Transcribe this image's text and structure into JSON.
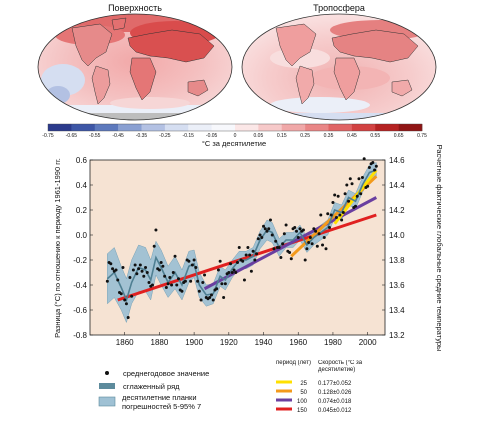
{
  "maps": {
    "left_title": "Поверхность",
    "right_title": "Тропосфера"
  },
  "color_scale": {
    "ticks": [
      "-0.75",
      "-0.65",
      "-0.55",
      "-0.45",
      "-0.35",
      "-0.25",
      "-0.15",
      "-0.05",
      "0",
      "0.05",
      "0.15",
      "0.25",
      "0.35",
      "0.45",
      "0.55",
      "0.65",
      "0.75"
    ],
    "colors": [
      "#2b3a8c",
      "#3d56a6",
      "#5d79bd",
      "#8aa0d2",
      "#b3c1e3",
      "#d5def1",
      "#ebeff8",
      "#f7f8fc",
      "#fbe7e7",
      "#f6c9c9",
      "#f0a8a8",
      "#e98686",
      "#e06464",
      "#d24242",
      "#b52222",
      "#901414"
    ],
    "unit_label": "°C за десятилетие"
  },
  "chart_data": {
    "type": "line",
    "xlim": [
      1840,
      2010
    ],
    "ylim": [
      -0.8,
      0.6
    ],
    "y2lim": [
      13.2,
      14.6
    ],
    "xticks": [
      "1860",
      "1880",
      "1900",
      "1920",
      "1940",
      "1960",
      "1980",
      "2000"
    ],
    "yticks": [
      "-0.8",
      "-0.6",
      "-0.4",
      "-0.2",
      "0.0",
      "0.2",
      "0.4",
      "0.6"
    ],
    "y2ticks": [
      "13.2",
      "13.4",
      "13.6",
      "13.8",
      "14.0",
      "14.2",
      "14.4",
      "14.6"
    ],
    "ylabel": "Разница (°C) по отношению к периоду 1961-1990 гг.",
    "y2label": "Расчетные фактические глобальные средние температуры",
    "annual": [
      [
        1850,
        -0.37
      ],
      [
        1851,
        -0.22
      ],
      [
        1852,
        -0.23
      ],
      [
        1853,
        -0.27
      ],
      [
        1854,
        -0.29
      ],
      [
        1855,
        -0.28
      ],
      [
        1856,
        -0.36
      ],
      [
        1857,
        -0.46
      ],
      [
        1858,
        -0.47
      ],
      [
        1859,
        -0.26
      ],
      [
        1860,
        -0.52
      ],
      [
        1861,
        -0.55
      ],
      [
        1862,
        -0.66
      ],
      [
        1863,
        -0.34
      ],
      [
        1864,
        -0.49
      ],
      [
        1865,
        -0.28
      ],
      [
        1866,
        -0.24
      ],
      [
        1867,
        -0.31
      ],
      [
        1868,
        -0.27
      ],
      [
        1869,
        -0.24
      ],
      [
        1870,
        -0.29
      ],
      [
        1871,
        -0.33
      ],
      [
        1872,
        -0.26
      ],
      [
        1873,
        -0.3
      ],
      [
        1874,
        -0.38
      ],
      [
        1875,
        -0.41
      ],
      [
        1876,
        -0.4
      ],
      [
        1877,
        -0.09
      ],
      [
        1878,
        0.04
      ],
      [
        1879,
        -0.27
      ],
      [
        1880,
        -0.28
      ],
      [
        1881,
        -0.22
      ],
      [
        1882,
        -0.25
      ],
      [
        1883,
        -0.33
      ],
      [
        1884,
        -0.42
      ],
      [
        1885,
        -0.39
      ],
      [
        1886,
        -0.34
      ],
      [
        1887,
        -0.4
      ],
      [
        1888,
        -0.3
      ],
      [
        1889,
        -0.17
      ],
      [
        1890,
        -0.4
      ],
      [
        1891,
        -0.35
      ],
      [
        1892,
        -0.44
      ],
      [
        1893,
        -0.45
      ],
      [
        1894,
        -0.38
      ],
      [
        1895,
        -0.37
      ],
      [
        1896,
        -0.2
      ],
      [
        1897,
        -0.21
      ],
      [
        1898,
        -0.37
      ],
      [
        1899,
        -0.24
      ],
      [
        1900,
        -0.2
      ],
      [
        1901,
        -0.26
      ],
      [
        1902,
        -0.37
      ],
      [
        1903,
        -0.45
      ],
      [
        1904,
        -0.52
      ],
      [
        1905,
        -0.38
      ],
      [
        1906,
        -0.32
      ],
      [
        1907,
        -0.5
      ],
      [
        1908,
        -0.51
      ],
      [
        1909,
        -0.5
      ],
      [
        1910,
        -0.48
      ],
      [
        1911,
        -0.52
      ],
      [
        1912,
        -0.44
      ],
      [
        1913,
        -0.43
      ],
      [
        1914,
        -0.28
      ],
      [
        1915,
        -0.21
      ],
      [
        1916,
        -0.39
      ],
      [
        1917,
        -0.5
      ],
      [
        1918,
        -0.39
      ],
      [
        1919,
        -0.31
      ],
      [
        1920,
        -0.3
      ],
      [
        1921,
        -0.23
      ],
      [
        1922,
        -0.3
      ],
      [
        1923,
        -0.28
      ],
      [
        1924,
        -0.3
      ],
      [
        1925,
        -0.22
      ],
      [
        1926,
        -0.1
      ],
      [
        1927,
        -0.2
      ],
      [
        1928,
        -0.21
      ],
      [
        1929,
        -0.36
      ],
      [
        1930,
        -0.16
      ],
      [
        1931,
        -0.1
      ],
      [
        1932,
        -0.16
      ],
      [
        1933,
        -0.29
      ],
      [
        1934,
        -0.13
      ],
      [
        1935,
        -0.2
      ],
      [
        1936,
        -0.15
      ],
      [
        1937,
        -0.03
      ],
      [
        1938,
        0.0
      ],
      [
        1939,
        -0.02
      ],
      [
        1940,
        0.07
      ],
      [
        1941,
        0.05
      ],
      [
        1942,
        0.03
      ],
      [
        1943,
        0.05
      ],
      [
        1944,
        0.12
      ],
      [
        1945,
        0.0
      ],
      [
        1946,
        -0.11
      ],
      [
        1947,
        -0.05
      ],
      [
        1948,
        -0.1
      ],
      [
        1949,
        -0.1
      ],
      [
        1950,
        -0.18
      ],
      [
        1951,
        -0.07
      ],
      [
        1952,
        0.01
      ],
      [
        1953,
        0.08
      ],
      [
        1954,
        -0.13
      ],
      [
        1955,
        -0.14
      ],
      [
        1956,
        -0.19
      ],
      [
        1957,
        0.05
      ],
      [
        1958,
        0.06
      ],
      [
        1959,
        0.03
      ],
      [
        1960,
        -0.02
      ],
      [
        1961,
        0.05
      ],
      [
        1962,
        0.03
      ],
      [
        1963,
        0.04
      ],
      [
        1964,
        -0.2
      ],
      [
        1965,
        -0.11
      ],
      [
        1966,
        -0.06
      ],
      [
        1967,
        -0.02
      ],
      [
        1968,
        -0.07
      ],
      [
        1969,
        0.05
      ],
      [
        1970,
        0.03
      ],
      [
        1971,
        -0.09
      ],
      [
        1972,
        0.01
      ],
      [
        1973,
        0.16
      ],
      [
        1974,
        -0.08
      ],
      [
        1975,
        -0.02
      ],
      [
        1976,
        -0.11
      ],
      [
        1977,
        0.17
      ],
      [
        1978,
        0.06
      ],
      [
        1979,
        0.16
      ],
      [
        1980,
        0.26
      ],
      [
        1981,
        0.32
      ],
      [
        1982,
        0.14
      ],
      [
        1983,
        0.31
      ],
      [
        1984,
        0.16
      ],
      [
        1985,
        0.12
      ],
      [
        1986,
        0.18
      ],
      [
        1987,
        0.33
      ],
      [
        1988,
        0.4
      ],
      [
        1989,
        0.27
      ],
      [
        1990,
        0.45
      ],
      [
        1991,
        0.41
      ],
      [
        1992,
        0.22
      ],
      [
        1993,
        0.23
      ],
      [
        1994,
        0.31
      ],
      [
        1995,
        0.45
      ],
      [
        1996,
        0.33
      ],
      [
        1997,
        0.46
      ],
      [
        1998,
        0.61
      ],
      [
        1999,
        0.38
      ],
      [
        2000,
        0.39
      ],
      [
        2001,
        0.54
      ],
      [
        2002,
        0.57
      ],
      [
        2003,
        0.58
      ],
      [
        2004,
        0.52
      ],
      [
        2005,
        0.55
      ]
    ],
    "smoothed": [
      [
        1850,
        -0.35
      ],
      [
        1854,
        -0.3
      ],
      [
        1858,
        -0.42
      ],
      [
        1861,
        -0.52
      ],
      [
        1864,
        -0.38
      ],
      [
        1868,
        -0.26
      ],
      [
        1872,
        -0.28
      ],
      [
        1875,
        -0.36
      ],
      [
        1878,
        -0.18
      ],
      [
        1881,
        -0.26
      ],
      [
        1885,
        -0.38
      ],
      [
        1889,
        -0.3
      ],
      [
        1893,
        -0.4
      ],
      [
        1897,
        -0.25
      ],
      [
        1900,
        -0.23
      ],
      [
        1903,
        -0.4
      ],
      [
        1907,
        -0.48
      ],
      [
        1911,
        -0.47
      ],
      [
        1915,
        -0.33
      ],
      [
        1918,
        -0.36
      ],
      [
        1922,
        -0.27
      ],
      [
        1926,
        -0.2
      ],
      [
        1930,
        -0.2
      ],
      [
        1934,
        -0.17
      ],
      [
        1938,
        -0.04
      ],
      [
        1942,
        0.04
      ],
      [
        1945,
        0.02
      ],
      [
        1949,
        -0.1
      ],
      [
        1953,
        -0.04
      ],
      [
        1957,
        -0.04
      ],
      [
        1961,
        0.02
      ],
      [
        1965,
        -0.08
      ],
      [
        1969,
        -0.02
      ],
      [
        1973,
        0.02
      ],
      [
        1977,
        0.06
      ],
      [
        1981,
        0.2
      ],
      [
        1985,
        0.18
      ],
      [
        1989,
        0.3
      ],
      [
        1993,
        0.27
      ],
      [
        1997,
        0.4
      ],
      [
        2001,
        0.5
      ],
      [
        2005,
        0.52
      ]
    ],
    "uncertainty": [
      [
        1850,
        -0.15,
        -0.55
      ],
      [
        1854,
        -0.1,
        -0.5
      ],
      [
        1858,
        -0.25,
        -0.6
      ],
      [
        1861,
        -0.35,
        -0.7
      ],
      [
        1864,
        -0.2,
        -0.55
      ],
      [
        1868,
        -0.08,
        -0.45
      ],
      [
        1872,
        -0.1,
        -0.45
      ],
      [
        1875,
        -0.2,
        -0.52
      ],
      [
        1878,
        -0.05,
        -0.32
      ],
      [
        1881,
        -0.12,
        -0.4
      ],
      [
        1885,
        -0.25,
        -0.5
      ],
      [
        1889,
        -0.17,
        -0.43
      ],
      [
        1893,
        -0.28,
        -0.52
      ],
      [
        1897,
        -0.13,
        -0.38
      ],
      [
        1900,
        -0.12,
        -0.34
      ],
      [
        1903,
        -0.3,
        -0.5
      ],
      [
        1907,
        -0.4,
        -0.57
      ],
      [
        1911,
        -0.39,
        -0.55
      ],
      [
        1915,
        -0.25,
        -0.41
      ],
      [
        1918,
        -0.28,
        -0.44
      ],
      [
        1922,
        -0.2,
        -0.34
      ],
      [
        1926,
        -0.13,
        -0.27
      ],
      [
        1930,
        -0.13,
        -0.27
      ],
      [
        1934,
        -0.1,
        -0.24
      ],
      [
        1938,
        0.03,
        -0.11
      ],
      [
        1942,
        0.12,
        -0.04
      ],
      [
        1945,
        0.1,
        -0.06
      ],
      [
        1949,
        -0.03,
        -0.17
      ],
      [
        1953,
        0.02,
        -0.1
      ],
      [
        1957,
        0.02,
        -0.1
      ],
      [
        1961,
        0.08,
        -0.04
      ],
      [
        1965,
        -0.02,
        -0.14
      ],
      [
        1969,
        0.04,
        -0.08
      ],
      [
        1973,
        0.08,
        -0.04
      ],
      [
        1977,
        0.12,
        0.0
      ],
      [
        1981,
        0.26,
        0.14
      ],
      [
        1985,
        0.24,
        0.12
      ],
      [
        1989,
        0.36,
        0.24
      ],
      [
        1993,
        0.33,
        0.21
      ],
      [
        1997,
        0.46,
        0.34
      ],
      [
        2001,
        0.56,
        0.44
      ],
      [
        2005,
        0.58,
        0.46
      ]
    ],
    "trends": [
      {
        "period": "25",
        "rate": "0.177±0.052",
        "color": "#ffe000",
        "x": [
          1981,
          2005
        ],
        "y": [
          0.09,
          0.52
        ]
      },
      {
        "period": "50",
        "rate": "0.128±0.026",
        "color": "#f39a1c",
        "x": [
          1956,
          2005
        ],
        "y": [
          -0.17,
          0.47
        ]
      },
      {
        "period": "100",
        "rate": "0.074±0.018",
        "color": "#6a3fa0",
        "x": [
          1906,
          2005
        ],
        "y": [
          -0.43,
          0.3
        ]
      },
      {
        "period": "150",
        "rate": "0.045±0.012",
        "color": "#e02020",
        "x": [
          1856,
          2005
        ],
        "y": [
          -0.52,
          0.16
        ]
      }
    ]
  },
  "legend": {
    "annual": "среднегодовое значение",
    "smoothed": "сглаженный ряд",
    "uncertainty": "десятилетние планки погрешностей 5-95% 7",
    "period_header": "период (лет)",
    "rate_header": "Скорость (°C за десятилетие)"
  }
}
